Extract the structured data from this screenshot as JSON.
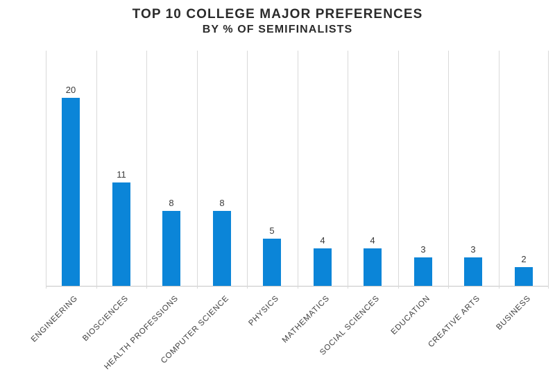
{
  "chart_data": {
    "type": "bar",
    "title": "TOP 10 COLLEGE MAJOR PREFERENCES",
    "subtitle": "BY % OF SEMIFINALISTS",
    "categories": [
      "ENGINEERING",
      "BIOSCIENCES",
      "HEALTH PROFESSIONS",
      "COMPUTER SCIENCE",
      "PHYSICS",
      "MATHEMATICS",
      "SOCIAL SCIENCES",
      "EDUCATION",
      "CREATIVE ARTS",
      "BUSINESS"
    ],
    "values": [
      20,
      11,
      8,
      8,
      5,
      4,
      4,
      3,
      3,
      2
    ],
    "xlabel": "",
    "ylabel": "",
    "ylim": [
      0,
      25
    ],
    "grid": "vertical-only",
    "legend": "none",
    "data_labels": true
  },
  "colors": {
    "bar": "#0b85d8",
    "gridline": "#d9d9d9",
    "axis_line": "#c6c6c6",
    "title_text": "#2b2b2b",
    "label_text": "#3a3a3a"
  }
}
